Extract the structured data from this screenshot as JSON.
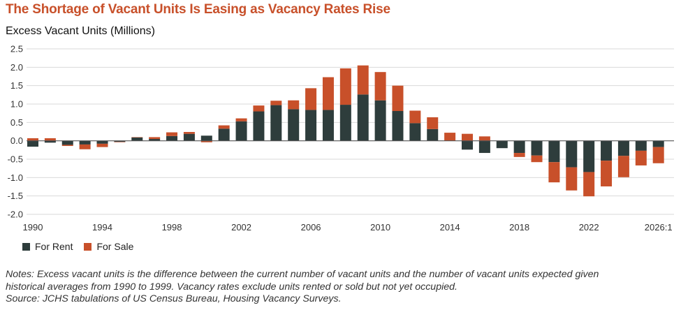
{
  "title": "The Shortage of Vacant Units Is Easing as Vacancy Rates Rise",
  "colors": {
    "title": "#c8502a",
    "rent": "#2e3d3c",
    "sale": "#c8502a",
    "grid": "#d9d9d9",
    "axis": "#555555"
  },
  "chart_data": {
    "type": "bar",
    "stacked": true,
    "ylabel": "Excess Vacant Units (Millions)",
    "ylim": [
      -2.0,
      2.5
    ],
    "yticks": [
      "2.5",
      "2.0",
      "1.5",
      "1.0",
      "0.5",
      "0.0",
      "-0.5",
      "-1.0",
      "-1.5",
      "-2.0"
    ],
    "ytick_values": [
      2.5,
      2.0,
      1.5,
      1.0,
      0.5,
      0.0,
      -0.5,
      -1.0,
      -1.5,
      -2.0
    ],
    "categories": [
      "1990",
      "1991",
      "1992",
      "1993",
      "1994",
      "1995",
      "1996",
      "1997",
      "1998",
      "1999",
      "2000",
      "2001",
      "2002",
      "2003",
      "2004",
      "2005",
      "2006",
      "2007",
      "2008",
      "2009",
      "2010",
      "2011",
      "2012",
      "2013",
      "2014",
      "2015",
      "2016",
      "2017",
      "2018",
      "2019",
      "2020",
      "2021",
      "2022",
      "2023",
      "2024",
      "2025",
      "2026:1"
    ],
    "xtick_labels": [
      "1990",
      "1994",
      "1998",
      "2002",
      "2006",
      "2010",
      "2014",
      "2018",
      "2022",
      "2026:1"
    ],
    "series": [
      {
        "name": "For Rent",
        "values": [
          -0.16,
          -0.05,
          -0.11,
          -0.1,
          -0.08,
          -0.03,
          0.09,
          0.05,
          0.13,
          0.19,
          0.14,
          0.33,
          0.53,
          0.8,
          0.97,
          0.86,
          0.84,
          0.84,
          0.98,
          1.26,
          1.1,
          0.81,
          0.48,
          0.32,
          0.0,
          -0.24,
          -0.33,
          -0.2,
          -0.33,
          -0.4,
          -0.58,
          -0.72,
          -0.85,
          -0.54,
          -0.41,
          -0.27,
          -0.17
        ]
      },
      {
        "name": "For Sale",
        "values": [
          0.07,
          0.07,
          -0.03,
          -0.13,
          -0.09,
          -0.01,
          0.01,
          0.05,
          0.1,
          0.05,
          -0.04,
          0.09,
          0.08,
          0.16,
          0.12,
          0.24,
          0.59,
          0.89,
          0.99,
          0.79,
          0.77,
          0.69,
          0.34,
          0.32,
          0.22,
          0.19,
          0.12,
          0.0,
          -0.11,
          -0.18,
          -0.55,
          -0.63,
          -0.66,
          -0.7,
          -0.58,
          -0.4,
          -0.44
        ]
      }
    ],
    "legend_position": "bottom-left",
    "grid": true
  },
  "legend": {
    "rent": "For Rent",
    "sale": "For Sale"
  },
  "notes": {
    "line1": "Notes: Excess vacant units is the difference between the current number of vacant units and the number of vacant units expected given",
    "line2": "historical averages from 1990 to 1999. Vacancy rates exclude units rented or sold but not yet occupied.",
    "line3": "Source: JCHS tabulations of US Census Bureau, Housing Vacancy Surveys."
  }
}
